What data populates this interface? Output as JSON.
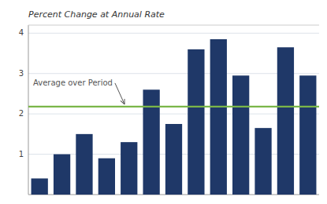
{
  "chart_data": {
    "type": "bar",
    "title": "Percent Change at Annual Rate",
    "categories": [
      null,
      null,
      null,
      null,
      null,
      null,
      null,
      null,
      null,
      null,
      null,
      null,
      null
    ],
    "values": [
      0.4,
      1.0,
      1.5,
      0.9,
      1.3,
      2.6,
      1.75,
      3.6,
      3.85,
      2.95,
      1.65,
      3.65,
      2.95
    ],
    "color": "#1f3868",
    "reference_lines": [
      {
        "value": 2.18,
        "color": "#7ab648"
      }
    ],
    "annotations": [
      {
        "text": "Average over Period"
      }
    ],
    "ylim": [
      0,
      4.2
    ],
    "yticks": [
      1,
      2,
      3,
      4
    ],
    "grid": true,
    "tick_labels": "y"
  }
}
